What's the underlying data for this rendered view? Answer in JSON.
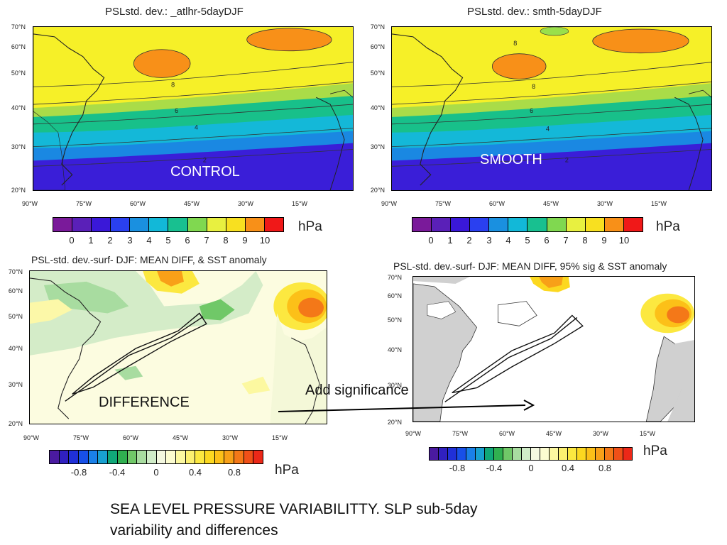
{
  "panels": {
    "control": {
      "title": "PSLstd. dev.:  _atlhr-5dayDJF",
      "label": "CONTROL",
      "contour_labels": [
        "8",
        "6",
        "4",
        "2"
      ]
    },
    "smooth": {
      "title": "PSLstd. dev.:  smth-5dayDJF",
      "label": "SMOOTH",
      "contour_labels": [
        "8",
        "8",
        "6",
        "4",
        "2"
      ]
    },
    "difference": {
      "title": "PSL-std. dev.-surf- DJF: MEAN DIFF,  & SST anomaly",
      "label": "DIFFERENCE"
    },
    "significance": {
      "title": "PSL-std. dev.-surf- DJF: MEAN DIFF, 95% sig & SST anomaly"
    }
  },
  "axes": {
    "lat_labels": [
      "70°N",
      "60°N",
      "50°N",
      "40°N",
      "30°N",
      "20°N"
    ],
    "lon_labels": [
      "90°W",
      "75°W",
      "60°W",
      "45°W",
      "30°W",
      "15°W"
    ]
  },
  "colorbar_abs": {
    "ticks": [
      "0",
      "1",
      "2",
      "3",
      "4",
      "5",
      "6",
      "7",
      "8",
      "9",
      "10"
    ],
    "unit": "hPa",
    "colors": [
      "#7a1a9a",
      "#5a20b8",
      "#3a18d8",
      "#2a40f0",
      "#1a90e0",
      "#12b8d8",
      "#18c090",
      "#80d850",
      "#e8f040",
      "#f8e020",
      "#f89018",
      "#f01818"
    ]
  },
  "colorbar_diff": {
    "ticks": [
      "-0.8",
      "-0.4",
      "0",
      "0.4",
      "0.8"
    ],
    "unit": "hPa",
    "colors": [
      "#4a1aa0",
      "#3020c0",
      "#2030d8",
      "#1850e8",
      "#1a80e8",
      "#18a0d0",
      "#10a878",
      "#30b050",
      "#70c868",
      "#a8dca0",
      "#d0ecc8",
      "#f4f8e0",
      "#fcfcd0",
      "#fcf8a0",
      "#fcf070",
      "#fce840",
      "#fcd820",
      "#fcc018",
      "#f8a018",
      "#f47818",
      "#f05018",
      "#ec2818"
    ]
  },
  "annotation": {
    "text": "Add significance"
  },
  "caption": {
    "text": "SEA LEVEL PRESSURE VARIABILITTY. SLP sub-5day variability and differences"
  }
}
